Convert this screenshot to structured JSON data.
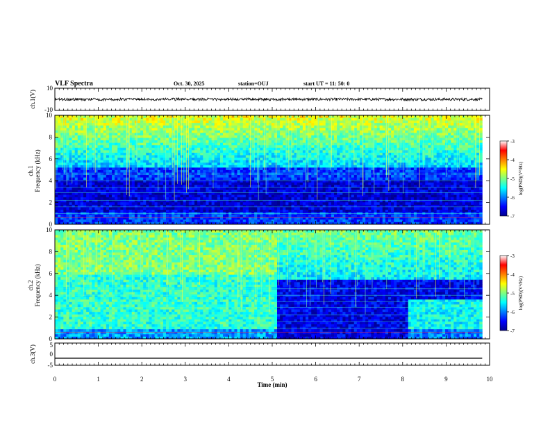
{
  "header": {
    "title": "VLF Spectra",
    "date": "Oct. 30, 2025",
    "station": "station=OUJ",
    "start": "start  UT =   11: 50: 0"
  },
  "chart_data": [
    {
      "type": "line",
      "name": "ch1-waveform",
      "ylabel": "ch.1(V)",
      "ylim": [
        -10,
        10
      ],
      "ytick_labels": [
        "10",
        "-10"
      ],
      "x_range": [
        0,
        9.83
      ],
      "baseline": 0,
      "amplitude": 1.2
    },
    {
      "type": "heatmap",
      "name": "ch1-spectrogram",
      "ylabel": "ch.1\nFrequency (kHz)",
      "ylim": [
        0,
        10
      ],
      "yticks": [
        0,
        2,
        4,
        6,
        8,
        10
      ],
      "ytick_labels": [
        "0",
        "2",
        "4",
        "6",
        "8",
        "10"
      ],
      "x_range": [
        0,
        9.83
      ],
      "colorbar": {
        "label": "log(PSD)(V²/Hz)",
        "range": [
          -7,
          -3
        ],
        "ticks": [
          -3,
          -4,
          -5,
          -6,
          -7
        ],
        "tick_labels": [
          "-3",
          "-4",
          "-5",
          "-6",
          "-7"
        ]
      }
    },
    {
      "type": "heatmap",
      "name": "ch2-spectrogram",
      "ylabel": "ch.2\nFrequency (kHz)",
      "ylim": [
        0,
        10
      ],
      "yticks": [
        0,
        2,
        4,
        6,
        8,
        10
      ],
      "ytick_labels": [
        "0",
        "2",
        "4",
        "6",
        "8",
        "10"
      ],
      "x_range": [
        0,
        9.83
      ],
      "colorbar": {
        "label": "log(PSD)(V²/Hz)",
        "range": [
          -7,
          -3
        ],
        "ticks": [
          -3,
          -4,
          -5,
          -6,
          -7
        ],
        "tick_labels": [
          "-3",
          "-4",
          "-5",
          "-6",
          "-7"
        ]
      }
    },
    {
      "type": "line",
      "name": "ch3-waveform",
      "ylabel": "ch.3(V)",
      "ylim": [
        -5,
        5
      ],
      "ytick_labels": [
        "5",
        "0",
        "-5"
      ],
      "x_range": [
        0,
        9.83
      ],
      "value": -1.8
    }
  ],
  "xaxis": {
    "label": "Time  (min)",
    "range": [
      0,
      10
    ],
    "ticks": [
      0,
      1,
      2,
      3,
      4,
      5,
      6,
      7,
      8,
      9,
      10
    ],
    "tick_labels": [
      "0",
      "1",
      "2",
      "3",
      "4",
      "5",
      "6",
      "7",
      "8",
      "9",
      "10"
    ]
  },
  "colors": {
    "spectrogram_low": "#00008f",
    "spectrogram_high": "#ff0000",
    "trace": "#000000"
  }
}
